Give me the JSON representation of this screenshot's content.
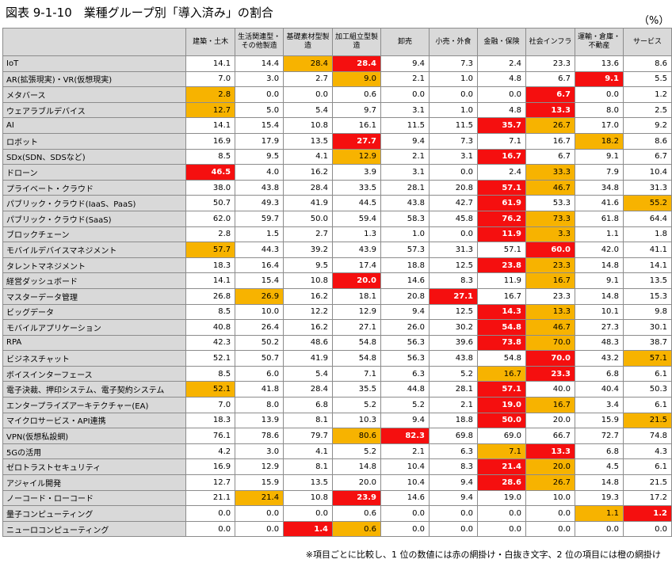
{
  "title": "図表 9-1-10　業種グループ別「導入済み」の割合",
  "unit": "（%）",
  "note": "※項目ごとに比較し、1 位の数値には赤の網掛け・白抜き文字、2 位の項目には橙の網掛け",
  "colors": {
    "rank1": "#f50f0f",
    "rank2": "#f7b300",
    "header_bg": "#d9d9d9"
  },
  "columns": [
    "建築・土木",
    "生活関連型・その他製造",
    "基礎素材型製造",
    "加工組立型製造",
    "卸売",
    "小売・外食",
    "金融・保険",
    "社会インフラ",
    "運輸・倉庫・不動産",
    "サービス"
  ],
  "rows": [
    {
      "label": "IoT",
      "values": [
        "14.1",
        "14.4",
        "28.4",
        "28.4",
        "9.4",
        "7.3",
        "2.4",
        "23.3",
        "13.6",
        "8.6"
      ],
      "rank": [
        0,
        0,
        2,
        1,
        0,
        0,
        0,
        0,
        0,
        0
      ]
    },
    {
      "label": "AR(拡張現実)・VR(仮想現実)",
      "values": [
        "7.0",
        "3.0",
        "2.7",
        "9.0",
        "2.1",
        "1.0",
        "4.8",
        "6.7",
        "9.1",
        "5.5"
      ],
      "rank": [
        0,
        0,
        0,
        2,
        0,
        0,
        0,
        0,
        1,
        0
      ]
    },
    {
      "label": "メタバース",
      "values": [
        "2.8",
        "0.0",
        "0.0",
        "0.6",
        "0.0",
        "0.0",
        "0.0",
        "6.7",
        "0.0",
        "1.2"
      ],
      "rank": [
        2,
        0,
        0,
        0,
        0,
        0,
        0,
        1,
        0,
        0
      ]
    },
    {
      "label": "ウェアラブルデバイス",
      "values": [
        "12.7",
        "5.0",
        "5.4",
        "9.7",
        "3.1",
        "1.0",
        "4.8",
        "13.3",
        "8.0",
        "2.5"
      ],
      "rank": [
        2,
        0,
        0,
        0,
        0,
        0,
        0,
        1,
        0,
        0
      ]
    },
    {
      "label": "AI",
      "values": [
        "14.1",
        "15.4",
        "10.8",
        "16.1",
        "11.5",
        "11.5",
        "35.7",
        "26.7",
        "17.0",
        "9.2"
      ],
      "rank": [
        0,
        0,
        0,
        0,
        0,
        0,
        1,
        2,
        0,
        0
      ]
    },
    {
      "label": "ロボット",
      "values": [
        "16.9",
        "17.9",
        "13.5",
        "27.7",
        "9.4",
        "7.3",
        "7.1",
        "16.7",
        "18.2",
        "8.6"
      ],
      "rank": [
        0,
        0,
        0,
        1,
        0,
        0,
        0,
        0,
        2,
        0
      ]
    },
    {
      "label": "SDx(SDN、SDSなど)",
      "values": [
        "8.5",
        "9.5",
        "4.1",
        "12.9",
        "2.1",
        "3.1",
        "16.7",
        "6.7",
        "9.1",
        "6.7"
      ],
      "rank": [
        0,
        0,
        0,
        2,
        0,
        0,
        1,
        0,
        0,
        0
      ]
    },
    {
      "label": "ドローン",
      "values": [
        "46.5",
        "4.0",
        "16.2",
        "3.9",
        "3.1",
        "0.0",
        "2.4",
        "33.3",
        "7.9",
        "10.4"
      ],
      "rank": [
        1,
        0,
        0,
        0,
        0,
        0,
        0,
        2,
        0,
        0
      ]
    },
    {
      "label": "プライベート・クラウド",
      "values": [
        "38.0",
        "43.8",
        "28.4",
        "33.5",
        "28.1",
        "20.8",
        "57.1",
        "46.7",
        "34.8",
        "31.3"
      ],
      "rank": [
        0,
        0,
        0,
        0,
        0,
        0,
        1,
        2,
        0,
        0
      ]
    },
    {
      "label": "パブリック・クラウド(IaaS、PaaS)",
      "values": [
        "50.7",
        "49.3",
        "41.9",
        "44.5",
        "43.8",
        "42.7",
        "61.9",
        "53.3",
        "41.6",
        "55.2"
      ],
      "rank": [
        0,
        0,
        0,
        0,
        0,
        0,
        1,
        0,
        0,
        2
      ]
    },
    {
      "label": "パブリック・クラウド(SaaS)",
      "values": [
        "62.0",
        "59.7",
        "50.0",
        "59.4",
        "58.3",
        "45.8",
        "76.2",
        "73.3",
        "61.8",
        "64.4"
      ],
      "rank": [
        0,
        0,
        0,
        0,
        0,
        0,
        1,
        2,
        0,
        0
      ]
    },
    {
      "label": "ブロックチェーン",
      "values": [
        "2.8",
        "1.5",
        "2.7",
        "1.3",
        "1.0",
        "0.0",
        "11.9",
        "3.3",
        "1.1",
        "1.8"
      ],
      "rank": [
        0,
        0,
        0,
        0,
        0,
        0,
        1,
        2,
        0,
        0
      ]
    },
    {
      "label": "モバイルデバイスマネジメント",
      "values": [
        "57.7",
        "44.3",
        "39.2",
        "43.9",
        "57.3",
        "31.3",
        "57.1",
        "60.0",
        "42.0",
        "41.1"
      ],
      "rank": [
        2,
        0,
        0,
        0,
        0,
        0,
        0,
        1,
        0,
        0
      ]
    },
    {
      "label": "タレントマネジメント",
      "values": [
        "18.3",
        "16.4",
        "9.5",
        "17.4",
        "18.8",
        "12.5",
        "23.8",
        "23.3",
        "14.8",
        "14.1"
      ],
      "rank": [
        0,
        0,
        0,
        0,
        0,
        0,
        1,
        2,
        0,
        0
      ]
    },
    {
      "label": "経営ダッシュボード",
      "values": [
        "14.1",
        "15.4",
        "10.8",
        "20.0",
        "14.6",
        "8.3",
        "11.9",
        "16.7",
        "9.1",
        "13.5"
      ],
      "rank": [
        0,
        0,
        0,
        1,
        0,
        0,
        0,
        2,
        0,
        0
      ]
    },
    {
      "label": "マスターデータ管理",
      "values": [
        "26.8",
        "26.9",
        "16.2",
        "18.1",
        "20.8",
        "27.1",
        "16.7",
        "23.3",
        "14.8",
        "15.3"
      ],
      "rank": [
        0,
        2,
        0,
        0,
        0,
        1,
        0,
        0,
        0,
        0
      ]
    },
    {
      "label": "ビッグデータ",
      "values": [
        "8.5",
        "10.0",
        "12.2",
        "12.9",
        "9.4",
        "12.5",
        "14.3",
        "13.3",
        "10.1",
        "9.8"
      ],
      "rank": [
        0,
        0,
        0,
        0,
        0,
        0,
        1,
        2,
        0,
        0
      ]
    },
    {
      "label": "モバイルアプリケーション",
      "values": [
        "40.8",
        "26.4",
        "16.2",
        "27.1",
        "26.0",
        "30.2",
        "54.8",
        "46.7",
        "27.3",
        "30.1"
      ],
      "rank": [
        0,
        0,
        0,
        0,
        0,
        0,
        1,
        2,
        0,
        0
      ]
    },
    {
      "label": "RPA",
      "values": [
        "42.3",
        "50.2",
        "48.6",
        "54.8",
        "56.3",
        "39.6",
        "73.8",
        "70.0",
        "48.3",
        "38.7"
      ],
      "rank": [
        0,
        0,
        0,
        0,
        0,
        0,
        1,
        2,
        0,
        0
      ]
    },
    {
      "label": "ビジネスチャット",
      "values": [
        "52.1",
        "50.7",
        "41.9",
        "54.8",
        "56.3",
        "43.8",
        "54.8",
        "70.0",
        "43.2",
        "57.1"
      ],
      "rank": [
        0,
        0,
        0,
        0,
        0,
        0,
        0,
        1,
        0,
        2
      ]
    },
    {
      "label": "ボイスインターフェース",
      "values": [
        "8.5",
        "6.0",
        "5.4",
        "7.1",
        "6.3",
        "5.2",
        "16.7",
        "23.3",
        "6.8",
        "6.1"
      ],
      "rank": [
        0,
        0,
        0,
        0,
        0,
        0,
        2,
        1,
        0,
        0
      ]
    },
    {
      "label": "電子決裁、押印システム、電子契約システム",
      "values": [
        "52.1",
        "41.8",
        "28.4",
        "35.5",
        "44.8",
        "28.1",
        "57.1",
        "40.0",
        "40.4",
        "50.3"
      ],
      "rank": [
        2,
        0,
        0,
        0,
        0,
        0,
        1,
        0,
        0,
        0
      ]
    },
    {
      "label": "エンタープライズアーキテクチャー(EA)",
      "values": [
        "7.0",
        "8.0",
        "6.8",
        "5.2",
        "5.2",
        "2.1",
        "19.0",
        "16.7",
        "3.4",
        "6.1"
      ],
      "rank": [
        0,
        0,
        0,
        0,
        0,
        0,
        1,
        2,
        0,
        0
      ]
    },
    {
      "label": "マイクロサービス・API連携",
      "values": [
        "18.3",
        "13.9",
        "8.1",
        "10.3",
        "9.4",
        "18.8",
        "50.0",
        "20.0",
        "15.9",
        "21.5"
      ],
      "rank": [
        0,
        0,
        0,
        0,
        0,
        0,
        1,
        0,
        0,
        2
      ]
    },
    {
      "label": "VPN(仮想私設網)",
      "values": [
        "76.1",
        "78.6",
        "79.7",
        "80.6",
        "82.3",
        "69.8",
        "69.0",
        "66.7",
        "72.7",
        "74.8"
      ],
      "rank": [
        0,
        0,
        0,
        2,
        1,
        0,
        0,
        0,
        0,
        0
      ]
    },
    {
      "label": "5Gの活用",
      "values": [
        "4.2",
        "3.0",
        "4.1",
        "5.2",
        "2.1",
        "6.3",
        "7.1",
        "13.3",
        "6.8",
        "4.3"
      ],
      "rank": [
        0,
        0,
        0,
        0,
        0,
        0,
        2,
        1,
        0,
        0
      ]
    },
    {
      "label": "ゼロトラストセキュリティ",
      "values": [
        "16.9",
        "12.9",
        "8.1",
        "14.8",
        "10.4",
        "8.3",
        "21.4",
        "20.0",
        "4.5",
        "6.1"
      ],
      "rank": [
        0,
        0,
        0,
        0,
        0,
        0,
        1,
        2,
        0,
        0
      ]
    },
    {
      "label": "アジャイル開発",
      "values": [
        "12.7",
        "15.9",
        "13.5",
        "20.0",
        "10.4",
        "9.4",
        "28.6",
        "26.7",
        "14.8",
        "21.5"
      ],
      "rank": [
        0,
        0,
        0,
        0,
        0,
        0,
        1,
        2,
        0,
        0
      ]
    },
    {
      "label": "ノーコード・ローコード",
      "values": [
        "21.1",
        "21.4",
        "10.8",
        "23.9",
        "14.6",
        "9.4",
        "19.0",
        "10.0",
        "19.3",
        "17.2"
      ],
      "rank": [
        0,
        2,
        0,
        1,
        0,
        0,
        0,
        0,
        0,
        0
      ]
    },
    {
      "label": "量子コンピューティング",
      "values": [
        "0.0",
        "0.0",
        "0.0",
        "0.6",
        "0.0",
        "0.0",
        "0.0",
        "0.0",
        "1.1",
        "1.2"
      ],
      "rank": [
        0,
        0,
        0,
        0,
        0,
        0,
        0,
        0,
        2,
        1
      ]
    },
    {
      "label": "ニューロコンピューティング",
      "values": [
        "0.0",
        "0.0",
        "1.4",
        "0.6",
        "0.0",
        "0.0",
        "0.0",
        "0.0",
        "0.0",
        "0.0"
      ],
      "rank": [
        0,
        0,
        1,
        2,
        0,
        0,
        0,
        0,
        0,
        0
      ]
    }
  ]
}
